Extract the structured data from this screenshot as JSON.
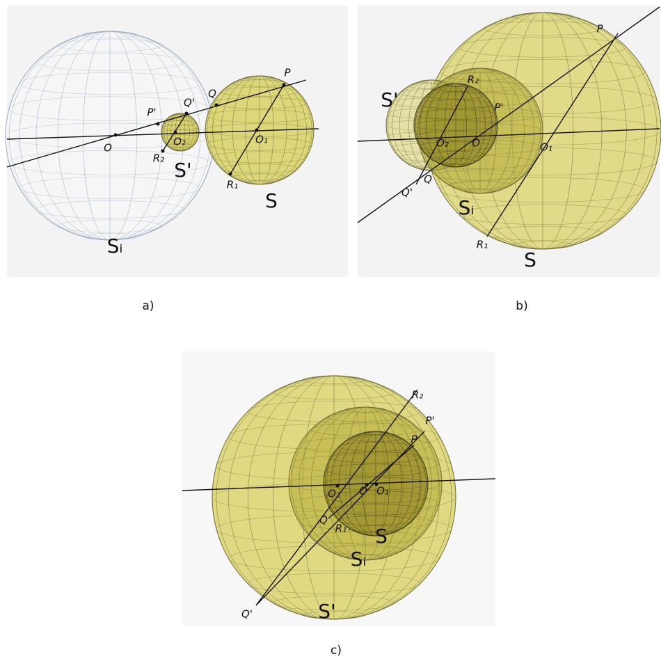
{
  "panels": [
    {
      "caption": "a)",
      "labels": [
        "O",
        "P'",
        "Q'",
        "O₂",
        "R₂",
        "Q",
        "P",
        "O₁",
        "R₁",
        "S'",
        "S",
        "Sᵢ"
      ]
    },
    {
      "caption": "b)",
      "labels": [
        "S'",
        "R₂",
        "P'",
        "O₂",
        "O",
        "O₁",
        "Q",
        "Q'",
        "Sᵢ",
        "R₁",
        "S",
        "P"
      ]
    },
    {
      "caption": "c)",
      "labels": [
        "R₂",
        "P'",
        "P",
        "O₂",
        "O",
        "O₁",
        "Q",
        "R₁",
        "S",
        "Sᵢ",
        "Q'",
        "S'"
      ]
    }
  ]
}
